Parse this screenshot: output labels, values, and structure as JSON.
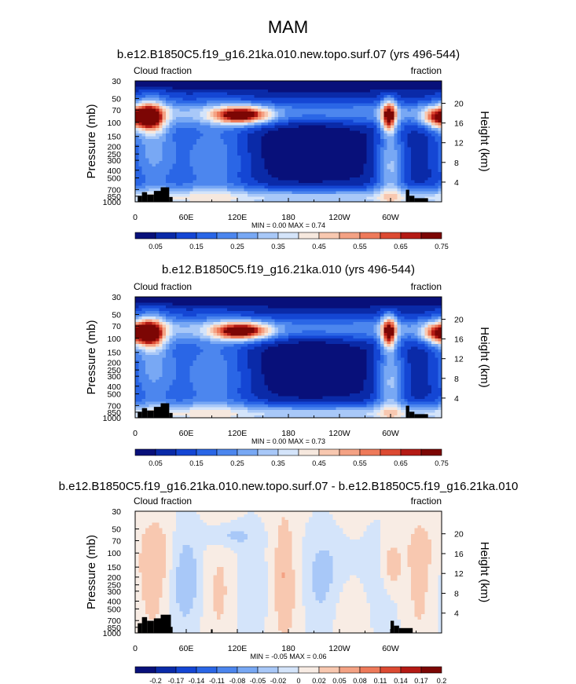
{
  "title": "MAM",
  "chart_data": [
    {
      "type": "heatmap",
      "title": "b.e12.B1850C5.f19_g16.21ka.010.new.topo.surf.07 (yrs 496-544)",
      "left_label": "Cloud fraction",
      "right_label": "fraction",
      "ylabel": "Pressure (mb)",
      "ylabel_right": "Height (km)",
      "x_ticks": [
        "0",
        "60E",
        "120E",
        "180",
        "120W",
        "60W"
      ],
      "y_ticks": [
        "1000",
        "850",
        "700",
        "500",
        "400",
        "300",
        "250",
        "200",
        "150",
        "100",
        "70",
        "50",
        "30"
      ],
      "height_ticks": [
        "4",
        "8",
        "12",
        "16",
        "20"
      ],
      "stats": "MIN =   0.00  MAX =   0.74",
      "colorbar_labels": [
        "0.05",
        "0.15",
        "0.25",
        "0.35",
        "0.45",
        "0.55",
        "0.65",
        "0.75"
      ],
      "colorbar_colors": [
        "#08107a",
        "#0a2aa8",
        "#1446d4",
        "#2a66e6",
        "#4c86ee",
        "#78a8f4",
        "#a8c8f8",
        "#d4e4fa",
        "#f6e8de",
        "#f8c8b0",
        "#f4a284",
        "#ee7a5a",
        "#dc4a32",
        "#b41a14",
        "#7c0604"
      ],
      "min": 0.0,
      "max": 0.74,
      "field": "mean_cloud"
    },
    {
      "type": "heatmap",
      "title": "b.e12.B1850C5.f19_g16.21ka.010 (yrs 496-544)",
      "left_label": "Cloud fraction",
      "right_label": "fraction",
      "ylabel": "Pressure (mb)",
      "ylabel_right": "Height (km)",
      "x_ticks": [
        "0",
        "60E",
        "120E",
        "180",
        "120W",
        "60W"
      ],
      "y_ticks": [
        "1000",
        "850",
        "700",
        "500",
        "400",
        "300",
        "250",
        "200",
        "150",
        "100",
        "70",
        "50",
        "30"
      ],
      "height_ticks": [
        "4",
        "8",
        "12",
        "16",
        "20"
      ],
      "stats": "MIN =   0.00  MAX =   0.73",
      "colorbar_labels": [
        "0.05",
        "0.15",
        "0.25",
        "0.35",
        "0.45",
        "0.55",
        "0.65",
        "0.75"
      ],
      "colorbar_colors": [
        "#08107a",
        "#0a2aa8",
        "#1446d4",
        "#2a66e6",
        "#4c86ee",
        "#78a8f4",
        "#a8c8f8",
        "#d4e4fa",
        "#f6e8de",
        "#f8c8b0",
        "#f4a284",
        "#ee7a5a",
        "#dc4a32",
        "#b41a14",
        "#7c0604"
      ],
      "min": 0.0,
      "max": 0.73,
      "field": "mean_cloud"
    },
    {
      "type": "heatmap",
      "title": "b.e12.B1850C5.f19_g16.21ka.010.new.topo.surf.07 - b.e12.B1850C5.f19_g16.21ka.010",
      "left_label": "Cloud fraction",
      "right_label": "fraction",
      "ylabel": "Pressure (mb)",
      "ylabel_right": "Height (km)",
      "x_ticks": [
        "0",
        "60E",
        "120E",
        "180",
        "120W",
        "60W"
      ],
      "y_ticks": [
        "1000",
        "850",
        "700",
        "500",
        "400",
        "300",
        "250",
        "200",
        "150",
        "100",
        "70",
        "50",
        "30"
      ],
      "height_ticks": [
        "4",
        "8",
        "12",
        "16",
        "20"
      ],
      "stats": "MIN =  -0.05  MAX =   0.06",
      "colorbar_labels": [
        "-0.2",
        "-0.17",
        "-0.14",
        "-0.11",
        "-0.08",
        "-0.05",
        "-0.02",
        "0",
        "0.02",
        "0.05",
        "0.08",
        "0.11",
        "0.14",
        "0.17",
        "0.2"
      ],
      "colorbar_colors": [
        "#08107a",
        "#0a2aa8",
        "#1446d4",
        "#2a66e6",
        "#4c86ee",
        "#78a8f4",
        "#a8c8f8",
        "#d4e4fa",
        "#f8ece4",
        "#f8c8b0",
        "#f4a284",
        "#ee7a5a",
        "#dc4a32",
        "#b41a14",
        "#7c0604"
      ],
      "min": -0.05,
      "max": 0.06,
      "field": "difference"
    }
  ]
}
